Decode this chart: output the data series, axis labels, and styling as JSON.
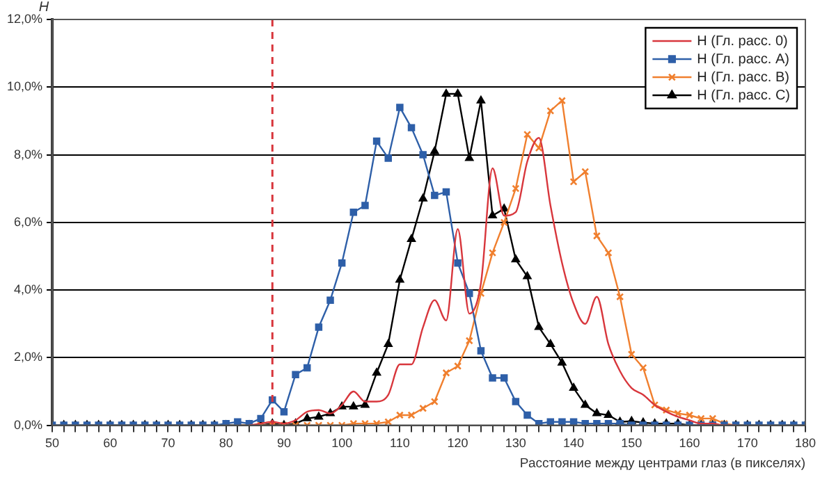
{
  "chart_data": {
    "type": "line",
    "xlabel": "Расстояние между центрами глаз (в пикселях)",
    "ylabel": "H",
    "x": [
      50,
      52,
      54,
      56,
      58,
      60,
      62,
      64,
      66,
      68,
      70,
      72,
      74,
      76,
      78,
      80,
      82,
      84,
      86,
      88,
      90,
      92,
      94,
      96,
      98,
      100,
      102,
      104,
      106,
      108,
      110,
      112,
      114,
      116,
      118,
      120,
      122,
      124,
      126,
      128,
      130,
      132,
      134,
      136,
      138,
      140,
      142,
      144,
      146,
      148,
      150,
      152,
      154,
      156,
      158,
      160,
      162,
      164,
      166,
      168,
      170,
      172,
      174,
      176,
      178,
      180
    ],
    "series": [
      {
        "name": "H (Гл. расс. 0)",
        "color": "#d8363c",
        "marker": "none",
        "values": [
          null,
          null,
          null,
          null,
          null,
          null,
          null,
          null,
          null,
          null,
          null,
          null,
          null,
          null,
          null,
          null,
          null,
          0,
          0.05,
          0.1,
          0.05,
          0.15,
          0.4,
          0.45,
          0.35,
          0.6,
          1.0,
          0.7,
          0.7,
          0.9,
          1.8,
          1.8,
          2.9,
          3.7,
          3.1,
          5.8,
          3.3,
          4.2,
          7.6,
          6.2,
          6.3,
          7.8,
          8.5,
          6.5,
          4.8,
          3.6,
          3.0,
          3.8,
          2.4,
          1.6,
          1.1,
          0.9,
          0.6,
          0.4,
          0.25,
          0.15,
          0.05,
          0.05,
          0,
          0,
          null,
          null,
          null,
          null,
          null,
          null
        ]
      },
      {
        "name": "H (Гл. расс. A)",
        "color": "#2e5fa8",
        "marker": "square",
        "values": [
          0,
          0,
          0,
          0,
          0,
          0,
          0,
          0,
          0,
          0,
          0,
          0,
          0,
          0,
          0,
          0.05,
          0.1,
          0.05,
          0.2,
          0.75,
          0.4,
          1.5,
          1.7,
          2.9,
          3.7,
          4.8,
          6.3,
          6.5,
          8.4,
          7.9,
          9.4,
          8.8,
          8.0,
          6.8,
          6.9,
          4.8,
          3.9,
          2.2,
          1.4,
          1.4,
          0.7,
          0.3,
          0.05,
          0.1,
          0.1,
          0.1,
          0.05,
          0.05,
          0.05,
          0.05,
          0,
          0,
          0,
          0,
          0,
          0,
          0,
          0,
          0,
          0,
          0,
          0,
          0,
          0,
          0,
          0
        ]
      },
      {
        "name": "H (Гл. расс. B)",
        "color": "#f07f2e",
        "marker": "cross",
        "values": [
          null,
          null,
          null,
          null,
          null,
          null,
          null,
          null,
          null,
          null,
          null,
          null,
          null,
          null,
          null,
          null,
          0,
          0,
          0,
          0,
          0,
          0,
          0,
          0,
          0,
          0,
          0.05,
          0.05,
          0.05,
          0.1,
          0.3,
          0.3,
          0.5,
          0.7,
          1.55,
          1.75,
          2.5,
          3.9,
          5.1,
          6.0,
          7.0,
          8.6,
          8.2,
          9.3,
          9.6,
          7.2,
          7.5,
          5.6,
          5.1,
          3.8,
          2.1,
          1.7,
          0.6,
          0.45,
          0.35,
          0.3,
          0.2,
          0.2,
          0.05,
          0,
          0,
          null,
          null,
          null,
          null,
          null
        ]
      },
      {
        "name": "H (Гл. расс. C)",
        "color": "#000000",
        "marker": "triangle",
        "values": [
          0,
          0,
          0,
          0,
          0,
          0,
          0,
          0,
          0,
          0,
          0,
          0,
          0,
          0,
          0,
          0,
          0,
          0,
          0,
          0.05,
          0,
          0.05,
          0.2,
          0.25,
          0.35,
          0.55,
          0.55,
          0.6,
          1.55,
          2.4,
          4.3,
          5.5,
          6.7,
          8.1,
          9.8,
          9.8,
          7.9,
          9.6,
          6.2,
          6.4,
          4.9,
          4.4,
          2.9,
          2.4,
          1.85,
          1.1,
          0.6,
          0.35,
          0.3,
          0.1,
          0.12,
          0.08,
          0.05,
          0.05,
          0.05,
          0,
          0,
          0,
          0,
          0,
          0,
          0,
          0,
          0,
          0,
          0
        ]
      }
    ],
    "xlim": [
      50,
      180
    ],
    "xticks": [
      50,
      {
        "value": 52,
        "label": null
      },
      {
        "value": 54,
        "label": null
      },
      {
        "value": 56,
        "label": null
      },
      {
        "value": 58,
        "label": null
      },
      60,
      {
        "value": 62,
        "label": null
      },
      {
        "value": 64,
        "label": null
      },
      {
        "value": 66,
        "label": null
      },
      {
        "value": 68,
        "label": null
      },
      70,
      {
        "value": 72,
        "label": null
      },
      {
        "value": 74,
        "label": null
      },
      {
        "value": 76,
        "label": null
      },
      {
        "value": 78,
        "label": null
      },
      80,
      {
        "value": 82,
        "label": null
      },
      {
        "value": 84,
        "label": null
      },
      {
        "value": 86,
        "label": null
      },
      {
        "value": 88,
        "label": null
      },
      90,
      {
        "value": 92,
        "label": null
      },
      {
        "value": 94,
        "label": null
      },
      {
        "value": 96,
        "label": null
      },
      {
        "value": 98,
        "label": null
      },
      100,
      {
        "value": 102,
        "label": null
      },
      {
        "value": 104,
        "label": null
      },
      {
        "value": 106,
        "label": null
      },
      {
        "value": 108,
        "label": null
      },
      110,
      {
        "value": 112,
        "label": null
      },
      {
        "value": 114,
        "label": null
      },
      {
        "value": 116,
        "label": null
      },
      {
        "value": 118,
        "label": null
      },
      120,
      {
        "value": 122,
        "label": null
      },
      {
        "value": 124,
        "label": null
      },
      {
        "value": 126,
        "label": null
      },
      {
        "value": 128,
        "label": null
      },
      130,
      {
        "value": 132,
        "label": null
      },
      {
        "value": 134,
        "label": null
      },
      {
        "value": 136,
        "label": null
      },
      {
        "value": 138,
        "label": null
      },
      140,
      {
        "value": 142,
        "label": null
      },
      {
        "value": 144,
        "label": null
      },
      {
        "value": 146,
        "label": null
      },
      {
        "value": 148,
        "label": null
      },
      150,
      {
        "value": 152,
        "label": null
      },
      {
        "value": 154,
        "label": null
      },
      {
        "value": 156,
        "label": null
      },
      {
        "value": 158,
        "label": null
      },
      160,
      {
        "value": 162,
        "label": null
      },
      {
        "value": 164,
        "label": null
      },
      {
        "value": 166,
        "label": null
      },
      {
        "value": 168,
        "label": null
      },
      170,
      {
        "value": 172,
        "label": null
      },
      {
        "value": 174,
        "label": null
      },
      {
        "value": 176,
        "label": null
      },
      {
        "value": 178,
        "label": null
      },
      180
    ],
    "ylim": [
      0,
      12
    ],
    "yticks": [
      {
        "value": 0,
        "label": "0,0%"
      },
      {
        "value": 2,
        "label": "2,0%"
      },
      {
        "value": 4,
        "label": "4,0%"
      },
      {
        "value": 6,
        "label": "6,0%"
      },
      {
        "value": 8,
        "label": "8,0%"
      },
      {
        "value": 10,
        "label": "10,0%"
      },
      {
        "value": 12,
        "label": "12,0%"
      }
    ],
    "grid": "y",
    "legend": "top right",
    "ref_lines": [
      {
        "axis": "x",
        "value": 88,
        "color": "#d8363c",
        "line_style": "dashed"
      }
    ]
  }
}
